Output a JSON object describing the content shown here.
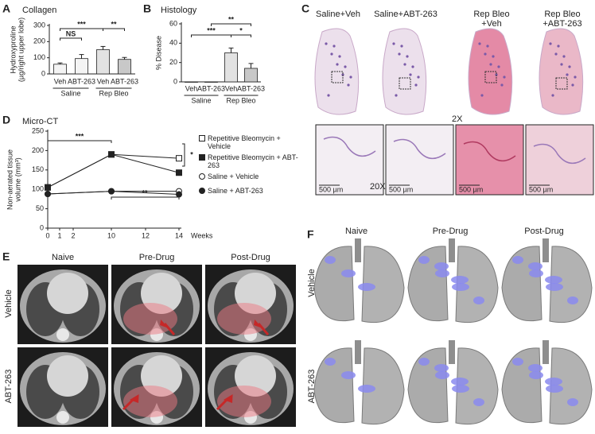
{
  "chart_data": [
    {
      "panel": "A",
      "type": "bar",
      "title": "Collagen",
      "y_label": [
        "Hydroxyproline",
        "(µg/right upper lobe)"
      ],
      "categories": [
        "Veh",
        "ABT-263",
        "Veh",
        "ABT-263"
      ],
      "groups": [
        "Saline",
        "Rep Bleo"
      ],
      "values": [
        60,
        95,
        150,
        90
      ],
      "errors": [
        8,
        25,
        20,
        12
      ],
      "colors": [
        "#f4f4f4",
        "#f4f4f4",
        "#e2e2e2",
        "#c8c8c8"
      ],
      "ylim": [
        0,
        300
      ],
      "yticks": [
        0,
        100,
        200,
        300
      ],
      "annotations": [
        "NS",
        "***",
        "**"
      ]
    },
    {
      "panel": "B",
      "type": "bar",
      "title": "Histology",
      "y_label": [
        "% Disease"
      ],
      "categories": [
        "Veh",
        "ABT-263",
        "Veh",
        "ABT-263"
      ],
      "groups": [
        "Saline",
        "Rep Bleo"
      ],
      "values": [
        0,
        0,
        30,
        14
      ],
      "errors": [
        0,
        0,
        5,
        5
      ],
      "colors": [
        "#f4f4f4",
        "#f4f4f4",
        "#e2e2e2",
        "#c8c8c8"
      ],
      "ylim": [
        0,
        60
      ],
      "yticks": [
        0,
        20,
        40,
        60
      ],
      "annotations": [
        "***",
        "**",
        "*"
      ]
    },
    {
      "panel": "D",
      "type": "line",
      "title": "Micro-CT",
      "y_label": [
        "Non-aerated tissue",
        "volume (mm³)"
      ],
      "x_label": "Weeks",
      "x": [
        0,
        10,
        14
      ],
      "xticks": [
        0,
        1,
        2,
        10,
        12,
        14
      ],
      "ylim": [
        0,
        250
      ],
      "yticks": [
        0,
        50,
        100,
        150,
        200,
        250
      ],
      "series": [
        {
          "name": "Repetitive Bleomycin + Vehicle",
          "color": "#222222",
          "marker": "square",
          "filled": false,
          "values": [
            105,
            190,
            180
          ]
        },
        {
          "name": "Repetitive Bleomycin + ABT-263",
          "color": "#222222",
          "marker": "square",
          "filled": true,
          "values": [
            105,
            190,
            143
          ]
        },
        {
          "name": "Saline + Vehicle",
          "color": "#222222",
          "marker": "circle",
          "filled": false,
          "values": [
            88,
            95,
            95
          ]
        },
        {
          "name": "Saline + ABT-263",
          "color": "#222222",
          "marker": "circle",
          "filled": true,
          "values": [
            88,
            95,
            87
          ]
        }
      ],
      "annotations": [
        "***",
        "**",
        "*"
      ]
    }
  ],
  "figure": {
    "panel_c": {
      "letter": "C",
      "labels": [
        [
          "Saline+Veh"
        ],
        [
          "Saline+ABT-263"
        ],
        [
          "Rep Bleo",
          "+Veh"
        ],
        [
          "Rep Bleo",
          "+ABT-263"
        ]
      ],
      "magnifications": [
        "2X",
        "20X"
      ],
      "scale_bars": [
        "500 µm",
        "500 µm",
        "500 µm",
        "500 µm"
      ]
    },
    "panel_e": {
      "letter": "E",
      "columns": [
        "Naive",
        "Pre-Drug",
        "Post-Drug"
      ],
      "rows": [
        "Vehicle",
        "ABT-263"
      ]
    },
    "panel_f": {
      "letter": "F",
      "columns": [
        "Naive",
        "Pre-Drug",
        "Post-Drug"
      ],
      "rows": [
        "Vehicle",
        "ABT-263"
      ]
    }
  }
}
